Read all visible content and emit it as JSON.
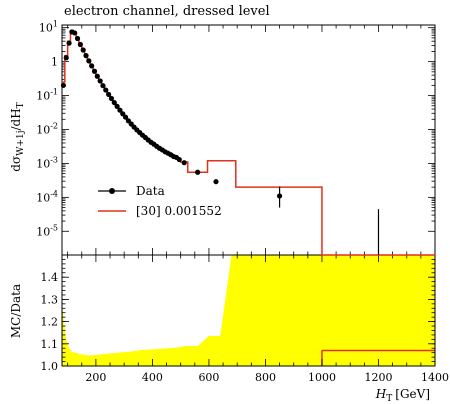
{
  "title": "electron channel, dressed level",
  "top_panel": {
    "ylabel_main": "dσ",
    "ylabel_sub": "W+1j",
    "ylabel_rest": "/dH",
    "ylabel_sub2": "T",
    "yticks": [
      {
        "base": "10",
        "exp": "1"
      },
      {
        "base": "1",
        "exp": ""
      },
      {
        "base": "10",
        "exp": "-1"
      },
      {
        "base": "10",
        "exp": "-2"
      },
      {
        "base": "10",
        "exp": "-3"
      },
      {
        "base": "10",
        "exp": "-4"
      },
      {
        "base": "10",
        "exp": "-5"
      }
    ]
  },
  "bottom_panel": {
    "ylabel": "MC/Data",
    "yticks": [
      "1.0",
      "1.1",
      "1.2",
      "1.3",
      "1.4"
    ]
  },
  "xaxis": {
    "label_main": "H",
    "label_sub": "T",
    "label_unit": "[GeV]",
    "ticks": [
      "200",
      "400",
      "600",
      "800",
      "1000",
      "1200",
      "1400"
    ]
  },
  "legend": {
    "data_label": "Data",
    "mc_label": "[30] 0.001552"
  },
  "colors": {
    "mc": "#e0301e",
    "band": "#ffff00",
    "data": "#000000"
  },
  "chart_data": [
    {
      "type": "scatter",
      "title": "electron channel, dressed level",
      "xlabel": "H_T [GeV]",
      "ylabel": "dσ_{W+1j}/dH_T",
      "yscale": "log",
      "xlim": [
        80,
        1400
      ],
      "ylim": [
        2e-06,
        12
      ],
      "series": [
        {
          "name": "Data",
          "x": [
            85,
            95,
            105,
            115,
            125,
            135,
            145,
            155,
            165,
            175,
            185,
            195,
            205,
            215,
            225,
            235,
            245,
            255,
            265,
            275,
            285,
            295,
            305,
            315,
            325,
            335,
            345,
            355,
            365,
            375,
            385,
            395,
            405,
            415,
            425,
            435,
            445,
            455,
            465,
            475,
            485,
            495,
            512.5,
            560,
            625,
            850,
            1200
          ],
          "y": [
            0.2,
            1.3,
            3.5,
            7.5,
            7.0,
            4.8,
            3.2,
            2.2,
            1.5,
            1.05,
            0.75,
            0.52,
            0.37,
            0.27,
            0.195,
            0.145,
            0.108,
            0.082,
            0.062,
            0.048,
            0.037,
            0.029,
            0.023,
            0.018,
            0.0145,
            0.0118,
            0.0097,
            0.0081,
            0.0068,
            0.0058,
            0.0049,
            0.0042,
            0.0037,
            0.0032,
            0.0028,
            0.0025,
            0.0022,
            0.002,
            0.0018,
            0.0016,
            0.0015,
            0.0013,
            0.00105,
            0.00055,
            0.00029,
            0.00011,
            null
          ],
          "yerr_up": [
            0.03,
            0.1,
            0.2,
            0.3,
            0.3,
            0.2,
            0.12,
            0.08,
            0.05,
            0.03,
            0.02,
            0.015,
            0.01,
            0.008,
            0.005,
            0.004,
            0.003,
            0.002,
            0.0016,
            0.0012,
            0.001,
            0.0008,
            0.0006,
            0.0005,
            0.0004,
            0.0003,
            0.0003,
            0.00025,
            0.0002,
            0.00018,
            0.00015,
            0.00013,
            0.00012,
            0.0001,
            0.0001,
            9e-05,
            8e-05,
            8e-05,
            7e-05,
            7e-05,
            6e-05,
            6e-05,
            5e-05,
            4e-05,
            4e-05,
            0.0001,
            4.5e-05
          ],
          "yerr_down": [
            0.03,
            0.1,
            0.2,
            0.3,
            0.3,
            0.2,
            0.12,
            0.08,
            0.05,
            0.03,
            0.02,
            0.015,
            0.01,
            0.008,
            0.005,
            0.004,
            0.003,
            0.002,
            0.0016,
            0.0012,
            0.001,
            0.0008,
            0.0006,
            0.0005,
            0.0004,
            0.0003,
            0.0003,
            0.00025,
            0.0002,
            0.00018,
            0.00015,
            0.00013,
            0.00012,
            0.0001,
            0.0001,
            9e-05,
            8e-05,
            8e-05,
            7e-05,
            7e-05,
            6e-05,
            6e-05,
            5e-05,
            4e-05,
            4e-05,
            6e-05,
            4.5e-05
          ]
        },
        {
          "name": "[30] 0.001552",
          "type": "step",
          "edges": [
            80,
            90,
            100,
            110,
            120,
            130,
            140,
            150,
            160,
            170,
            180,
            190,
            200,
            210,
            220,
            230,
            240,
            250,
            260,
            270,
            280,
            290,
            300,
            310,
            320,
            330,
            340,
            350,
            360,
            370,
            380,
            390,
            400,
            410,
            420,
            430,
            440,
            450,
            460,
            470,
            480,
            490,
            500,
            525,
            595,
            655,
            695,
            1000,
            1400
          ],
          "values": [
            0.25,
            1.5,
            4.0,
            8.2,
            7.4,
            5.0,
            3.35,
            2.3,
            1.58,
            1.1,
            0.79,
            0.55,
            0.39,
            0.285,
            0.205,
            0.152,
            0.113,
            0.086,
            0.065,
            0.05,
            0.039,
            0.0305,
            0.024,
            0.019,
            0.0152,
            0.0124,
            0.0102,
            0.0085,
            0.0071,
            0.006,
            0.0051,
            0.0044,
            0.0039,
            0.0034,
            0.0029,
            0.0026,
            0.0023,
            0.0021,
            0.0019,
            0.0017,
            0.0016,
            0.0014,
            0.0011,
            0.00055,
            0.0012,
            0.0012,
            0.0002,
            1.5e-06
          ]
        }
      ]
    },
    {
      "type": "area",
      "xlabel": "H_T [GeV]",
      "ylabel": "MC/Data",
      "xlim": [
        80,
        1400
      ],
      "ylim": [
        1.0,
        1.5
      ],
      "series": [
        {
          "name": "uncertainty band",
          "x": [
            80,
            85,
            95,
            105,
            115,
            125,
            140,
            160,
            180,
            200,
            240,
            280,
            320,
            360,
            400,
            440,
            480,
            520,
            560,
            600,
            640,
            680,
            720,
            1000,
            1400
          ],
          "y": [
            1.29,
            1.22,
            1.12,
            1.08,
            1.065,
            1.06,
            1.055,
            1.05,
            1.048,
            1.05,
            1.055,
            1.06,
            1.065,
            1.072,
            1.075,
            1.078,
            1.082,
            1.09,
            1.09,
            1.135,
            1.135,
            1.5,
            1.5,
            1.5,
            1.5
          ]
        },
        {
          "name": "ratio line",
          "x": [
            1000,
            1400
          ],
          "y": [
            1.07,
            1.07
          ]
        }
      ]
    }
  ]
}
